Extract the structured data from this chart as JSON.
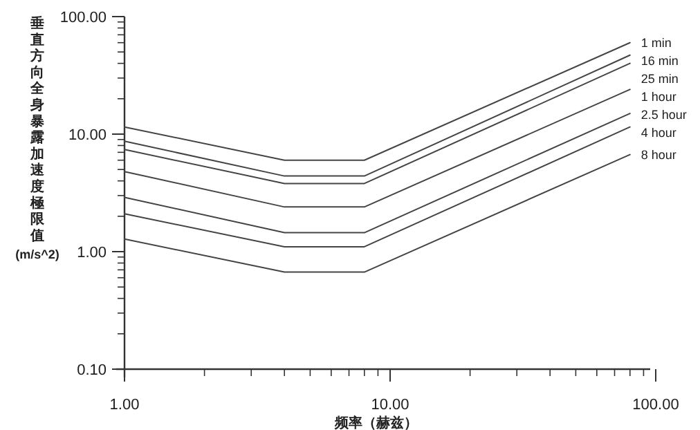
{
  "chart_data": {
    "type": "line",
    "xlabel": "频率（赫兹）",
    "ylabel": "垂直方向全身暴露加速度極限值(m/s^2)",
    "log": "xy",
    "x": [
      1,
      4,
      8,
      80
    ],
    "xlim": [
      1,
      100
    ],
    "xticks": [
      {
        "value": 1,
        "label": "1.00"
      },
      {
        "value": 10,
        "label": "10.00"
      },
      {
        "value": 100,
        "label": "100.00"
      }
    ],
    "ylim": [
      0.1,
      100
    ],
    "yticks": [
      {
        "value": 0.1,
        "label": "0.10"
      },
      {
        "value": 1,
        "label": "1.00"
      },
      {
        "value": 10,
        "label": "10.00"
      },
      {
        "value": 100,
        "label": "100.00"
      }
    ],
    "marker": "none",
    "line_style": "solid",
    "series": [
      {
        "name": "1 min",
        "color": "#444444",
        "values": [
          11.5,
          6.0,
          6.0,
          60
        ]
      },
      {
        "name": "16 min",
        "color": "#444444",
        "values": [
          8.7,
          4.4,
          4.4,
          47
        ]
      },
      {
        "name": "25 min",
        "color": "#444444",
        "values": [
          7.4,
          3.8,
          3.8,
          40
        ]
      },
      {
        "name": "1 hour",
        "color": "#444444",
        "values": [
          4.8,
          2.4,
          2.4,
          24
        ]
      },
      {
        "name": "2.5 hour",
        "color": "#444444",
        "values": [
          2.9,
          1.45,
          1.45,
          15
        ]
      },
      {
        "name": "4 hour",
        "color": "#444444",
        "values": [
          2.1,
          1.1,
          1.1,
          11.5
        ]
      },
      {
        "name": "8 hour",
        "color": "#444444",
        "values": [
          1.28,
          0.67,
          0.67,
          6.7
        ]
      }
    ]
  }
}
